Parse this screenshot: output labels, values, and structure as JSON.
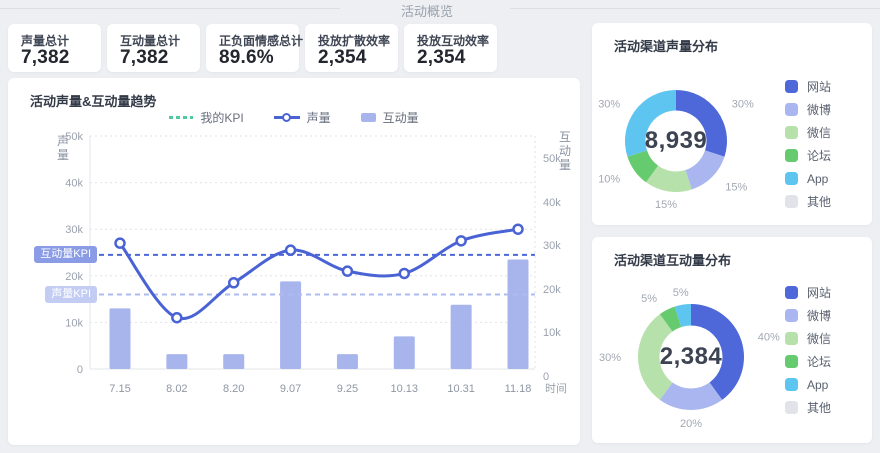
{
  "header": {
    "title": "活动概览"
  },
  "kpi_cards": [
    {
      "label": "声量总计",
      "value": "7,382"
    },
    {
      "label": "互动量总计",
      "value": "7,382"
    },
    {
      "label": "正负面情感总计",
      "value": "89.6%"
    },
    {
      "label": "投放扩散效率",
      "value": "2,354"
    },
    {
      "label": "投放互动效率",
      "value": "2,354"
    }
  ],
  "chart_data": [
    {
      "id": "trend",
      "type": "bar+line",
      "title": "活动声量&互动量趋势",
      "categories": [
        "7.15",
        "8.02",
        "8.20",
        "9.07",
        "9.25",
        "10.13",
        "10.31",
        "11.18"
      ],
      "series": [
        {
          "name": "我的KPI",
          "type": "dashed-threshold"
        },
        {
          "name": "声量",
          "type": "line",
          "values": [
            27000,
            11000,
            18500,
            25500,
            21000,
            20500,
            27500,
            30000
          ]
        },
        {
          "name": "互动量",
          "type": "bar",
          "values": [
            13000,
            3200,
            3200,
            18800,
            3200,
            7000,
            13800,
            23500
          ]
        }
      ],
      "thresholds": [
        {
          "label": "互动量KPI",
          "value": 24500
        },
        {
          "label": "声量KPI",
          "value": 16000
        }
      ],
      "ylabel_left": "声量",
      "ylabel_right": "互动量",
      "xlabel": "时间",
      "ylim": [
        0,
        50000
      ],
      "yticks_left": [
        "50k",
        "40k",
        "30k",
        "20k",
        "10k",
        "0"
      ],
      "yticks_right": [
        "50k",
        "40k",
        "30k",
        "20k",
        "10k",
        "0"
      ],
      "grid": true,
      "legend_position": "top"
    },
    {
      "id": "sound_channels",
      "type": "pie",
      "title": "活动渠道声量分布",
      "center_value": "8,939",
      "labels": [
        "网站",
        "微博",
        "微信",
        "论坛",
        "App",
        "其他"
      ],
      "values": [
        30,
        15,
        15,
        10,
        30,
        0
      ],
      "percent_labels": [
        "30%",
        "15%",
        "15%",
        "10%",
        "30%",
        ""
      ],
      "legend_position": "right"
    },
    {
      "id": "interaction_channels",
      "type": "pie",
      "title": "活动渠道互动量分布",
      "center_value": "2,384",
      "labels": [
        "网站",
        "微博",
        "微信",
        "论坛",
        "App",
        "其他"
      ],
      "values": [
        40,
        20,
        30,
        5,
        5,
        0
      ],
      "percent_labels": [
        "40%",
        "20%",
        "30%",
        "5%",
        "5%",
        ""
      ],
      "legend_position": "right"
    }
  ],
  "colors": {
    "line_series": "#4a63d4",
    "bar_series": "#a8b5ec",
    "my_kpi_dash": "#4ec9a2",
    "threshold_dark": "#4c67da",
    "threshold_light": "#adbbf0",
    "badge_dark_bg": "#8b9ce7",
    "badge_light_bg": "#c3cdf4",
    "pie_palette": [
      "#4f68d9",
      "#a9b6ef",
      "#b6e1aa",
      "#66ca6e",
      "#5ec5f0",
      "#e1e3e8"
    ],
    "axis_text": "#9aa2ae",
    "grid_line": "#dfe2e8"
  }
}
